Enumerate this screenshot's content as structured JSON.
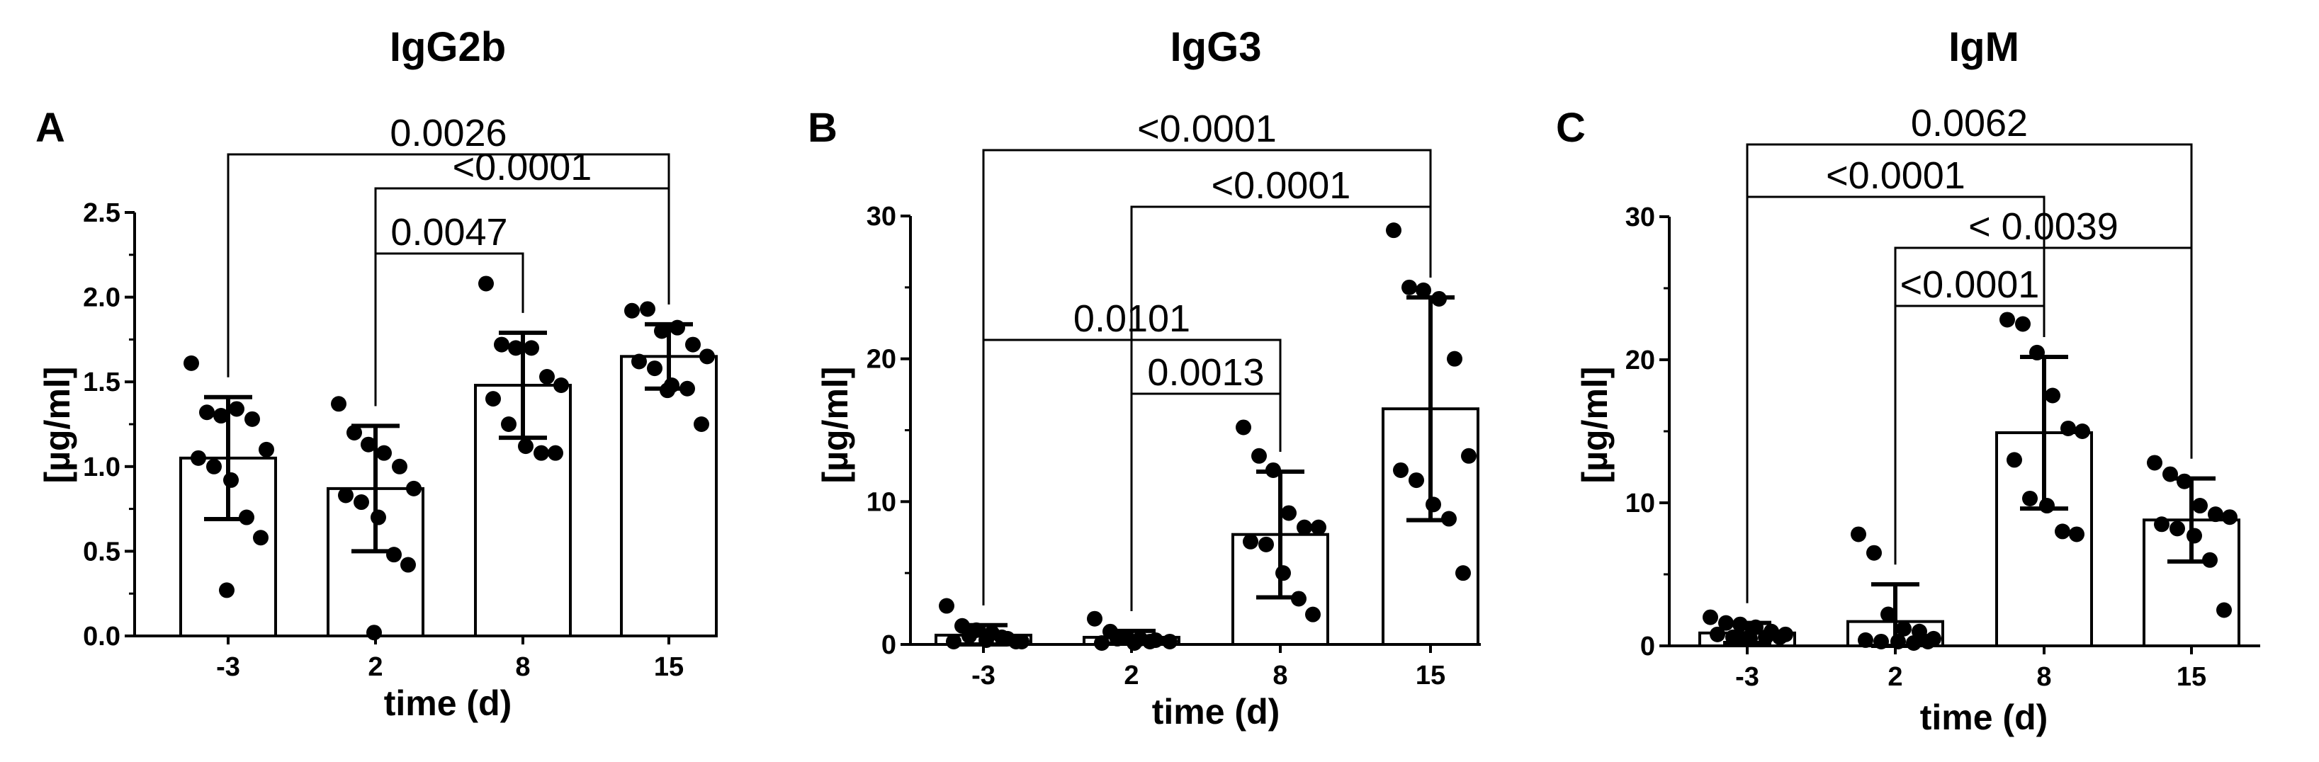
{
  "chart_data": [
    {
      "type": "bar",
      "panel": "A",
      "title": "IgG2b",
      "xlabel": "time (d)",
      "ylabel": "[µg/ml]",
      "categories": [
        "-3",
        "2",
        "8",
        "15"
      ],
      "ylim": [
        0,
        2.5
      ],
      "yticks": [
        0.0,
        0.5,
        1.0,
        1.5,
        2.0,
        2.5
      ],
      "ytick_labels": [
        "0.0",
        "0.5",
        "1.0",
        "1.5",
        "2.0",
        "2.5"
      ],
      "values": [
        1.05,
        0.87,
        1.48,
        1.65
      ],
      "sd": [
        0.36,
        0.37,
        0.31,
        0.19
      ],
      "points": [
        [
          1.61,
          1.32,
          1.3,
          1.34,
          1.28,
          1.1,
          1.05,
          1.0,
          0.92,
          0.7,
          0.58,
          0.27
        ],
        [
          1.37,
          1.2,
          1.13,
          1.08,
          1.0,
          0.87,
          0.83,
          0.79,
          0.7,
          0.48,
          0.42,
          0.02
        ],
        [
          2.08,
          1.72,
          1.7,
          1.7,
          1.53,
          1.48,
          1.4,
          1.25,
          1.12,
          1.08,
          1.08
        ],
        [
          1.92,
          1.93,
          1.8,
          1.82,
          1.72,
          1.65,
          1.62,
          1.58,
          1.48,
          1.46,
          1.25,
          1.45
        ]
      ],
      "comparisons": [
        {
          "from": 0,
          "to": 3,
          "label": "0.0026"
        },
        {
          "from": 1,
          "to": 3,
          "label": "<0.0001"
        },
        {
          "from": 1,
          "to": 2,
          "label": "0.0047"
        }
      ]
    },
    {
      "type": "bar",
      "panel": "B",
      "title": "IgG3",
      "xlabel": "time (d)",
      "ylabel": "[µg/ml]",
      "categories": [
        "-3",
        "2",
        "8",
        "15"
      ],
      "ylim": [
        0,
        30
      ],
      "yticks": [
        0,
        10,
        20,
        30
      ],
      "ytick_labels": [
        "0",
        "10",
        "20",
        "30"
      ],
      "values": [
        0.65,
        0.5,
        7.7,
        16.5
      ],
      "sd": [
        0.7,
        0.45,
        4.4,
        7.8
      ],
      "points": [
        [
          2.7,
          1.3,
          1.0,
          0.8,
          0.4,
          0.2,
          0.2,
          0.6,
          0.3,
          0.5,
          0.2
        ],
        [
          1.8,
          0.9,
          0.5,
          0.4,
          0.3,
          0.2,
          0.1,
          0.4,
          0.1,
          0.2
        ],
        [
          15.2,
          13.2,
          12.2,
          9.2,
          8.2,
          8.2,
          7.2,
          7.0,
          5.0,
          3.2,
          2.1
        ],
        [
          29.0,
          25.0,
          24.8,
          24.2,
          20.0,
          13.2,
          12.2,
          11.5,
          9.8,
          8.8,
          5.0
        ]
      ],
      "comparisons": [
        {
          "from": 0,
          "to": 3,
          "label": "<0.0001"
        },
        {
          "from": 1,
          "to": 3,
          "label": "<0.0001"
        },
        {
          "from": 0,
          "to": 2,
          "label": "0.0101"
        },
        {
          "from": 1,
          "to": 2,
          "label": "0.0013"
        }
      ]
    },
    {
      "type": "bar",
      "panel": "C",
      "title": "IgM",
      "xlabel": "time (d)",
      "ylabel": "[µg/ml]",
      "categories": [
        "-3",
        "2",
        "8",
        "15"
      ],
      "ylim": [
        0,
        30
      ],
      "yticks": [
        0,
        10,
        20,
        30
      ],
      "ytick_labels": [
        "0",
        "10",
        "20",
        "30"
      ],
      "values": [
        0.9,
        1.7,
        14.9,
        8.8
      ],
      "sd": [
        0.7,
        2.6,
        5.3,
        2.9
      ],
      "points": [
        [
          2.0,
          1.6,
          1.5,
          1.3,
          1.0,
          0.8,
          0.8,
          0.6,
          0.5,
          0.6,
          0.6,
          0.5
        ],
        [
          7.8,
          6.5,
          2.2,
          1.2,
          1.0,
          0.5,
          0.4,
          0.3,
          0.3,
          0.2,
          0.3
        ],
        [
          22.8,
          22.5,
          20.5,
          17.5,
          15.2,
          15.0,
          13.0,
          10.3,
          9.8,
          8.0,
          7.8
        ],
        [
          12.8,
          12.0,
          11.5,
          9.8,
          9.2,
          9.0,
          8.5,
          8.2,
          7.7,
          6.0,
          2.5
        ]
      ],
      "comparisons": [
        {
          "from": 0,
          "to": 3,
          "label": "0.0062"
        },
        {
          "from": 0,
          "to": 2,
          "label": "<0.0001"
        },
        {
          "from": 1,
          "to": 3,
          "label": "< 0.0039"
        },
        {
          "from": 1,
          "to": 2,
          "label": "<0.0001"
        }
      ]
    }
  ]
}
